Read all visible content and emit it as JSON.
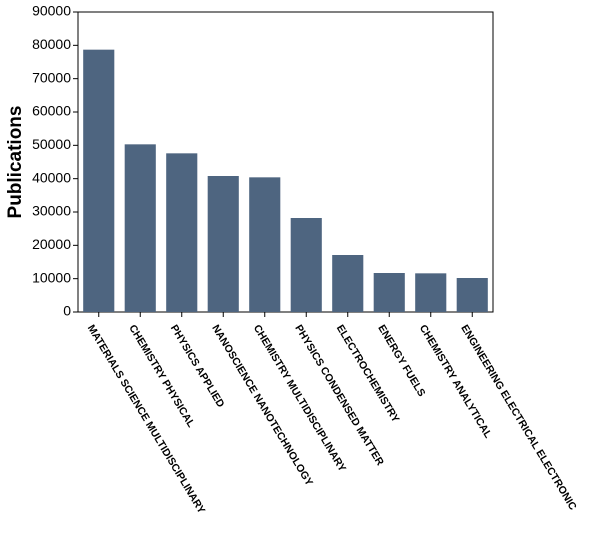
{
  "chart_data": {
    "type": "bar",
    "y_label": "Publications",
    "categories": [
      "MATERIALS SCIENCE MULTIDISCIPLINARY",
      "CHEMISTRY PHYSICAL",
      "PHYSICS APPLIED",
      "NANOSCIENCE NANOTECHNOLOGY",
      "CHEMISTRY MULTIDISCIPLINARY",
      "PHYSICS CONDENSED MATTER",
      "ELECTROCHEMISTRY",
      "ENERGY FUELS",
      "CHEMISTRY ANALYTICAL",
      "ENGINEERING ELECTRICAL ELECTRONIC"
    ],
    "values": [
      78700,
      50300,
      47600,
      40800,
      40400,
      28200,
      17100,
      11700,
      11600,
      10200
    ],
    "color": "#4e6580",
    "ylim": [
      0,
      90000
    ],
    "yticks": [
      0,
      10000,
      20000,
      30000,
      40000,
      50000,
      60000,
      70000,
      80000,
      90000
    ],
    "grid": false
  }
}
